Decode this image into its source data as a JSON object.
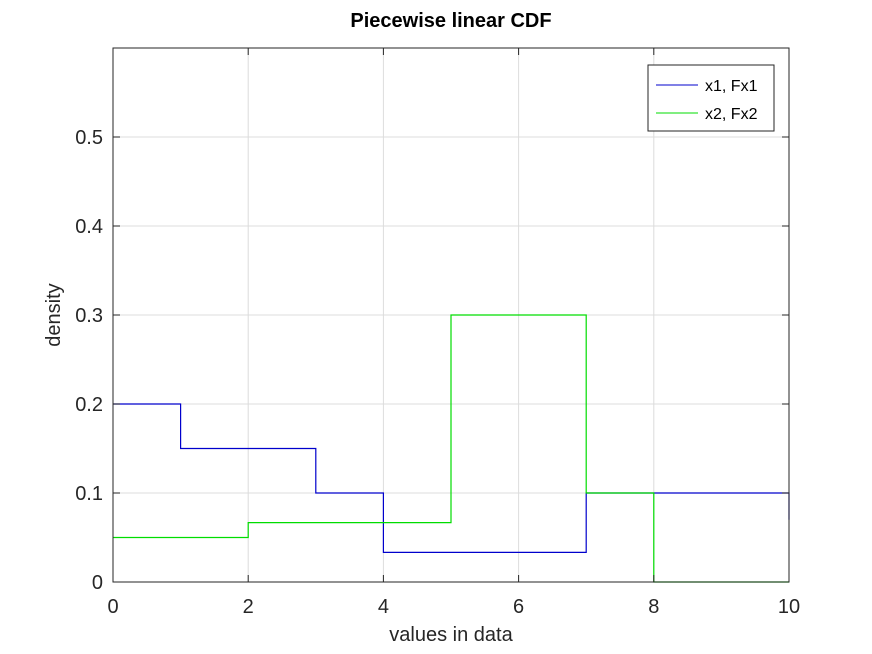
{
  "chart_data": {
    "type": "line",
    "title": "Piecewise linear CDF",
    "xlabel": "values in data",
    "ylabel": "density",
    "xlim": [
      0,
      10
    ],
    "ylim": [
      0,
      0.6
    ],
    "grid": true,
    "legend_position": "top-right",
    "x_ticks": [
      0,
      2,
      4,
      6,
      8,
      10
    ],
    "x_tick_labels": [
      "0",
      "2",
      "4",
      "6",
      "8",
      "10"
    ],
    "y_ticks": [
      0,
      0.1,
      0.2,
      0.3,
      0.4,
      0.5
    ],
    "y_tick_labels": [
      "0",
      "0.1",
      "0.2",
      "0.3",
      "0.4",
      "0.5"
    ],
    "series": [
      {
        "name": "x1, Fx1",
        "color": "#0000cc",
        "x": [
          0,
          1,
          1,
          3,
          3,
          4,
          4,
          7,
          7,
          10,
          10
        ],
        "y": [
          0.2,
          0.2,
          0.15,
          0.15,
          0.1,
          0.1,
          0.0333,
          0.0333,
          0.1,
          0.1,
          0.07
        ]
      },
      {
        "name": "x2, Fx2",
        "color": "#00dd00",
        "x": [
          0,
          2,
          2,
          5,
          5,
          7,
          7,
          8,
          8,
          10
        ],
        "y": [
          0.05,
          0.05,
          0.0667,
          0.0667,
          0.3,
          0.3,
          0.1,
          0.1,
          0,
          0
        ]
      }
    ]
  }
}
